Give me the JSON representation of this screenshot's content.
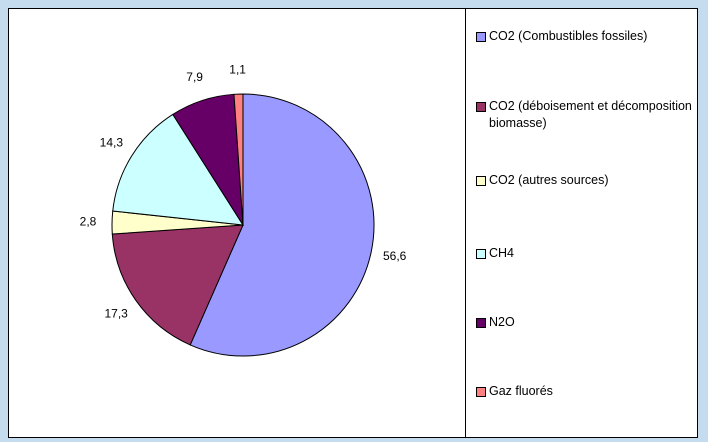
{
  "chart_data": {
    "type": "pie",
    "categories": [
      "CO2 (Combustibles fossiles)",
      "CO2 (déboisement et décomposition biomasse)",
      "CO2 (autres sources)",
      "CH4",
      "N2O",
      "Gaz fluorés"
    ],
    "values": [
      56.6,
      17.3,
      2.8,
      14.3,
      7.9,
      1.1
    ],
    "value_labels": [
      "56,6",
      "17,3",
      "2,8",
      "14,3",
      "7,9",
      "1,1"
    ],
    "colors": [
      "#9999ff",
      "#993366",
      "#ffffcc",
      "#ccffff",
      "#660066",
      "#ff8080"
    ],
    "legend": "right"
  }
}
